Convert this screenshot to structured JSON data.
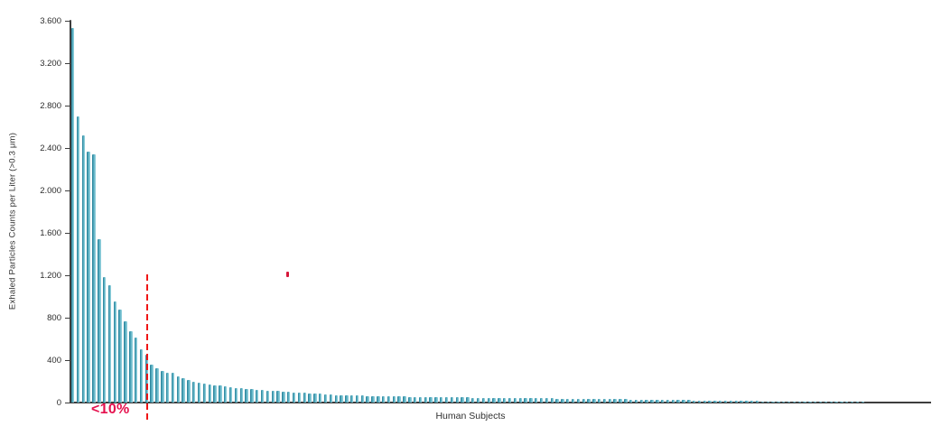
{
  "chart_data": {
    "type": "bar",
    "title": "",
    "xlabel": "Human Subjects",
    "ylabel": "Exhaled Particles Counts per Liter (>0.3 μm)",
    "ylim": [
      0,
      3600
    ],
    "grid": false,
    "legend": "none",
    "ytick_values": [
      0,
      400,
      800,
      1200,
      1600,
      2000,
      2400,
      2800,
      3200,
      3600
    ],
    "ytick_labels": [
      "0",
      "400",
      "800",
      "1.200",
      "1.600",
      "2.000",
      "2.400",
      "2.800",
      "3.200",
      "3.600"
    ],
    "x_description": "individual human subjects, ranked by exhaled particle count (descending)",
    "values": [
      3530,
      2700,
      2520,
      2370,
      2340,
      1540,
      1180,
      1110,
      950,
      880,
      770,
      670,
      610,
      500,
      455,
      355,
      325,
      300,
      285,
      278,
      243,
      229,
      215,
      200,
      190,
      182,
      174,
      166,
      158,
      151,
      145,
      139,
      134,
      130,
      126,
      122,
      118,
      114,
      110,
      107,
      104,
      101,
      98,
      95,
      92,
      89,
      86,
      82,
      78,
      74,
      71,
      69,
      67,
      66,
      65,
      64,
      63,
      62,
      61,
      60,
      59,
      58,
      57,
      56,
      55,
      54,
      53,
      52,
      51,
      50,
      49,
      49,
      48,
      48,
      47,
      47,
      46,
      46,
      45,
      45,
      44,
      44,
      43,
      43,
      42,
      42,
      41,
      41,
      40,
      40,
      39,
      39,
      38,
      38,
      37,
      36,
      35,
      34,
      33,
      33,
      32,
      32,
      31,
      31,
      30,
      30,
      29,
      29,
      28,
      28,
      27,
      27,
      26,
      26,
      25,
      24,
      23,
      22,
      21,
      20,
      19,
      19,
      18,
      18,
      17,
      16,
      15,
      15,
      14,
      13,
      13,
      12,
      12,
      11,
      11,
      10,
      10,
      9,
      9,
      8,
      8,
      7,
      7,
      6,
      6,
      5,
      5,
      5,
      4,
      4,
      4
    ],
    "annotations": {
      "threshold_label": "<10%",
      "threshold_line": {
        "after_bar_index": 15,
        "style": "dashed",
        "color": "#f01515"
      },
      "stray_dot_color": "#d6173a"
    },
    "colors": {
      "bar_fill": "#4aa8bd",
      "bar_edge": "#257a91",
      "axis": "#3d3d3d",
      "tick_text": "#2b2b2b",
      "threshold_text": "#e5114e"
    }
  }
}
